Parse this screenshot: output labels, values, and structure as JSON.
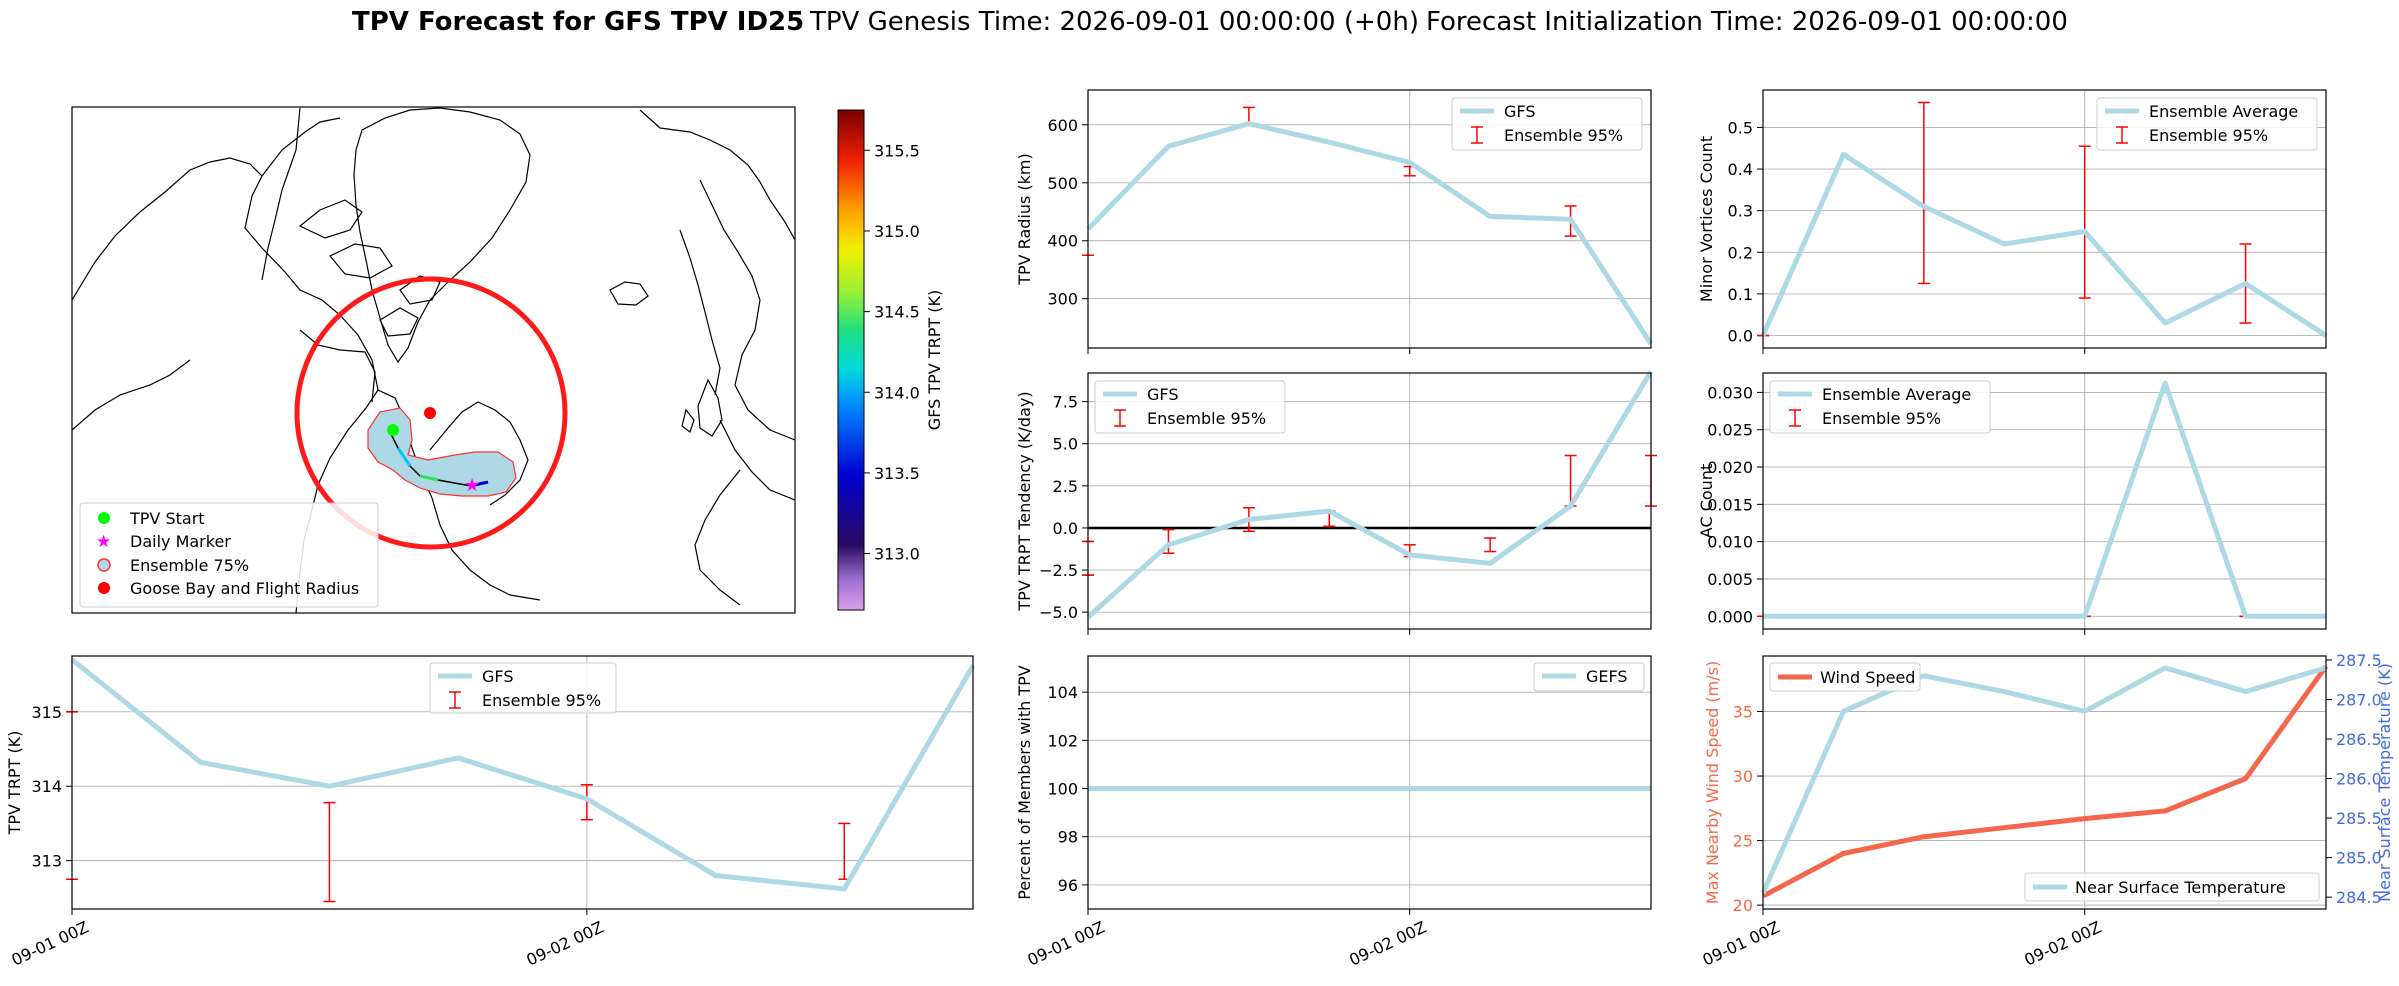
{
  "title": {
    "bold": "TPV Forecast for GFS TPV ID25",
    "genesis": "TPV Genesis Time: 2026-09-01 00:00:00 (+0h)",
    "init": "Forecast Initialization Time: 2026-09-01 00:00:00"
  },
  "colors": {
    "gfs_line": "#add8e6",
    "ensemble_err": "#ff0000",
    "wind_line": "#f4674c",
    "temp_axis": "#4169e1",
    "wind_axis": "#f4674c",
    "flight_radius": "#ff1a1a",
    "tpv_start": "#00ff00",
    "daily_marker": "#ff00ff",
    "goose_bay": "#ff0000"
  },
  "map": {
    "legend": [
      "TPV Start",
      "Daily Marker",
      "Ensemble 75%",
      "Goose Bay and Flight Radius"
    ],
    "colorbar": {
      "label": "GFS TPV TRPT (K)",
      "ticks": [
        "315.5",
        "315.0",
        "314.5",
        "314.0",
        "313.5",
        "313.0"
      ],
      "range": [
        312.65,
        315.75
      ]
    }
  },
  "chart_data": [
    {
      "id": "trpt",
      "type": "line",
      "ylabel": "TPV TRPT (K)",
      "x": [
        0,
        0.25,
        0.5,
        0.75,
        1.0,
        1.25,
        1.5,
        1.75
      ],
      "xticks": [
        {
          "x": 0,
          "label": "09-01 00Z"
        },
        {
          "x": 1,
          "label": "09-02 00Z"
        }
      ],
      "ylim": [
        312.35,
        315.75
      ],
      "yticks": [
        313,
        314,
        315
      ],
      "legend": [
        "GFS",
        "Ensemble 95%"
      ],
      "series": [
        {
          "name": "GFS",
          "values": [
            315.7,
            314.32,
            314.0,
            314.38,
            313.83,
            312.8,
            312.62,
            315.62
          ]
        }
      ],
      "errorbars": [
        {
          "x": 0,
          "low": 315.0,
          "high": 315.0
        },
        {
          "x": 0,
          "low": 312.75,
          "high": 312.75
        },
        {
          "x": 0.5,
          "low": 312.45,
          "high": 313.78
        },
        {
          "x": 1.0,
          "low": 313.55,
          "high": 314.02
        },
        {
          "x": 1.5,
          "low": 312.75,
          "high": 313.5
        }
      ]
    },
    {
      "id": "radius",
      "type": "line",
      "ylabel": "TPV Radius (km)",
      "x": [
        0,
        0.25,
        0.5,
        0.75,
        1.0,
        1.25,
        1.5,
        1.75
      ],
      "ylim": [
        215,
        660
      ],
      "yticks": [
        300,
        400,
        500,
        600
      ],
      "legend": [
        "GFS",
        "Ensemble 95%"
      ],
      "series": [
        {
          "name": "GFS",
          "values": [
            420,
            563,
            602,
            570,
            535,
            442,
            437,
            222
          ]
        }
      ],
      "errorbars": [
        {
          "x": 0,
          "low": 375,
          "high": 375
        },
        {
          "x": 0.5,
          "low": 602,
          "high": 630
        },
        {
          "x": 1.0,
          "low": 512,
          "high": 528
        },
        {
          "x": 1.5,
          "low": 408,
          "high": 460
        }
      ]
    },
    {
      "id": "minor",
      "type": "line",
      "ylabel": "Minor Vortices Count",
      "x": [
        0,
        0.25,
        0.5,
        0.75,
        1.0,
        1.25,
        1.5,
        1.75
      ],
      "ylim": [
        -0.03,
        0.59
      ],
      "yticks": [
        0.0,
        0.1,
        0.2,
        0.3,
        0.4,
        0.5
      ],
      "ytick_labels": [
        "0.0",
        "0.1",
        "0.2",
        "0.3",
        "0.4",
        "0.5"
      ],
      "legend": [
        "Ensemble Average",
        "Ensemble 95%"
      ],
      "series": [
        {
          "name": "Ensemble Average",
          "values": [
            0.0,
            0.435,
            0.31,
            0.22,
            0.25,
            0.03,
            0.125,
            0.0
          ]
        }
      ],
      "errorbars": [
        {
          "x": 0,
          "low": 0.0,
          "high": 0.0
        },
        {
          "x": 0.5,
          "low": 0.125,
          "high": 0.56
        },
        {
          "x": 1.0,
          "low": 0.09,
          "high": 0.455
        },
        {
          "x": 1.5,
          "low": 0.03,
          "high": 0.22
        }
      ]
    },
    {
      "id": "tendency",
      "type": "line",
      "ylabel": "TPV TRPT Tendency (K/day)",
      "x": [
        0,
        0.25,
        0.5,
        0.75,
        1.0,
        1.25,
        1.5,
        1.75
      ],
      "ylim": [
        -6.0,
        9.2
      ],
      "yticks": [
        -5.0,
        -2.5,
        0.0,
        2.5,
        5.0,
        7.5
      ],
      "ytick_labels": [
        "−5.0",
        "−2.5",
        "0.0",
        "2.5",
        "5.0",
        "7.5"
      ],
      "legend": [
        "GFS",
        "Ensemble 95%"
      ],
      "zero_line": true,
      "series": [
        {
          "name": "GFS",
          "values": [
            -5.3,
            -1.0,
            0.5,
            1.0,
            -1.6,
            -2.1,
            1.3,
            9.3
          ]
        }
      ],
      "errorbars": [
        {
          "x": 0,
          "low": -2.8,
          "high": -2.8
        },
        {
          "x": 0,
          "low": -0.8,
          "high": -0.8
        },
        {
          "x": 0.25,
          "low": -1.5,
          "high": -0.1
        },
        {
          "x": 0.5,
          "low": -0.2,
          "high": 1.2
        },
        {
          "x": 0.75,
          "low": 0.1,
          "high": 1.0
        },
        {
          "x": 1.0,
          "low": -1.7,
          "high": -1.0
        },
        {
          "x": 1.25,
          "low": -1.4,
          "high": -0.6
        },
        {
          "x": 1.5,
          "low": 1.3,
          "high": 4.3
        },
        {
          "x": 1.75,
          "low": 1.3,
          "high": 4.3
        }
      ]
    },
    {
      "id": "ac",
      "type": "line",
      "ylabel": "AC Count",
      "x": [
        0,
        0.25,
        0.5,
        0.75,
        1.0,
        1.25,
        1.5,
        1.75
      ],
      "ylim": [
        -0.0017,
        0.0326
      ],
      "yticks": [
        0.0,
        0.005,
        0.01,
        0.015,
        0.02,
        0.025,
        0.03
      ],
      "ytick_labels": [
        "0.000",
        "0.005",
        "0.010",
        "0.015",
        "0.020",
        "0.025",
        "0.030"
      ],
      "legend": [
        "Ensemble Average",
        "Ensemble 95%"
      ],
      "series": [
        {
          "name": "Ensemble Average",
          "values": [
            0,
            0,
            0,
            0,
            0,
            0.03125,
            0,
            0
          ]
        }
      ],
      "errorbars": [
        {
          "x": 0,
          "low": 0,
          "high": 0
        },
        {
          "x": 0.5,
          "low": 0,
          "high": 0
        },
        {
          "x": 1.0,
          "low": 0,
          "high": 0
        },
        {
          "x": 1.5,
          "low": 0,
          "high": 0
        }
      ]
    },
    {
      "id": "members",
      "type": "line",
      "ylabel": "Percent of Members with TPV",
      "x": [
        0,
        0.25,
        0.5,
        0.75,
        1.0,
        1.25,
        1.5,
        1.75
      ],
      "xticks": [
        {
          "x": 0,
          "label": "09-01 00Z"
        },
        {
          "x": 1,
          "label": "09-02 00Z"
        }
      ],
      "ylim": [
        95,
        105.5
      ],
      "yticks": [
        96,
        98,
        100,
        102,
        104
      ],
      "legend": [
        "GEFS"
      ],
      "series": [
        {
          "name": "GEFS",
          "values": [
            100,
            100,
            100,
            100,
            100,
            100,
            100,
            100
          ]
        }
      ]
    },
    {
      "id": "wind_temp",
      "type": "line",
      "x": [
        0,
        0.25,
        0.5,
        0.75,
        1.0,
        1.25,
        1.5,
        1.75
      ],
      "xticks": [
        {
          "x": 0,
          "label": "09-01 00Z"
        },
        {
          "x": 1,
          "label": "09-02 00Z"
        }
      ],
      "ylabel": "Max Nearby Wind Speed (m/s)",
      "ylim": [
        19.7,
        39.3
      ],
      "yticks": [
        20,
        25,
        30,
        35
      ],
      "y2label": "Near Surface Temperature (K)",
      "y2lim": [
        284.35,
        287.55
      ],
      "y2ticks": [
        284.5,
        285.0,
        285.5,
        286.0,
        286.5,
        287.0,
        287.5
      ],
      "y2tick_labels": [
        "284.5",
        "285.0",
        "285.5",
        "286.0",
        "286.5",
        "287.0",
        "287.5"
      ],
      "legend_left": [
        "Wind Speed"
      ],
      "legend_right": [
        "Near Surface Temperature"
      ],
      "series": [
        {
          "name": "Wind Speed",
          "axis": "left",
          "values": [
            20.7,
            24.0,
            25.3,
            26.0,
            26.7,
            27.3,
            29.8,
            38.5
          ]
        },
        {
          "name": "Near Surface Temperature",
          "axis": "right",
          "values": [
            284.55,
            286.85,
            287.3,
            287.1,
            286.85,
            287.4,
            287.1,
            287.4
          ]
        }
      ]
    }
  ]
}
